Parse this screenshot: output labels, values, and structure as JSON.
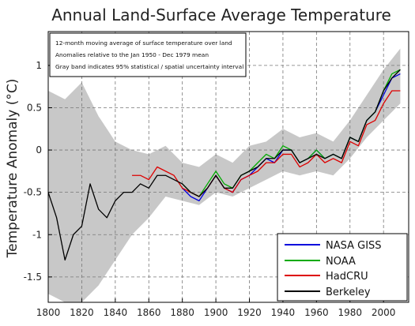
{
  "chart_data": {
    "type": "line",
    "title": "Annual Land-Surface Average Temperature",
    "xlabel": "",
    "ylabel": "Temperature Anomaly (°C)",
    "xlim": [
      1800,
      2015
    ],
    "ylim": [
      -1.8,
      1.4
    ],
    "xticks": [
      1800,
      1820,
      1840,
      1860,
      1880,
      1900,
      1920,
      1940,
      1960,
      1980,
      2000
    ],
    "yticks": [
      -1.5,
      -1,
      -0.5,
      0,
      0.5,
      1
    ],
    "ytick_labels": [
      "-1.5",
      "-1",
      "-0.5",
      "0",
      "0.5",
      "1"
    ],
    "grid": true,
    "legend_position": "bottom-right",
    "annotations": [
      "12-month moving average of surface temperature over land",
      "Anomalies relative to the Jan 1950 - Dec 1979 mean",
      "Gray band indicates 95% statistical / spatial uncertainty interval"
    ],
    "uncertainty_band": {
      "label": "95% uncertainty interval",
      "color": "#c8c8c8",
      "x": [
        1800,
        1810,
        1820,
        1830,
        1840,
        1850,
        1860,
        1870,
        1880,
        1890,
        1900,
        1910,
        1920,
        1930,
        1940,
        1950,
        1960,
        1970,
        1980,
        1990,
        2000,
        2010
      ],
      "lower": [
        -1.7,
        -1.8,
        -1.8,
        -1.6,
        -1.3,
        -1.0,
        -0.8,
        -0.55,
        -0.6,
        -0.65,
        -0.5,
        -0.55,
        -0.45,
        -0.35,
        -0.25,
        -0.3,
        -0.25,
        -0.3,
        -0.1,
        0.15,
        0.35,
        0.55
      ],
      "upper": [
        0.7,
        0.6,
        0.8,
        0.4,
        0.1,
        0.0,
        -0.05,
        0.05,
        -0.15,
        -0.2,
        -0.05,
        -0.15,
        0.05,
        0.1,
        0.25,
        0.15,
        0.2,
        0.1,
        0.35,
        0.65,
        0.95,
        1.2
      ]
    },
    "series": [
      {
        "name": "NASA GISS",
        "color": "#0000dd",
        "x": [
          1880,
          1885,
          1890,
          1895,
          1900,
          1905,
          1910,
          1915,
          1920,
          1925,
          1930,
          1935,
          1940,
          1945,
          1950,
          1955,
          1960,
          1965,
          1970,
          1975,
          1980,
          1985,
          1990,
          1995,
          2000,
          2005,
          2010
        ],
        "y": [
          -0.45,
          -0.55,
          -0.6,
          -0.45,
          -0.3,
          -0.45,
          -0.5,
          -0.35,
          -0.3,
          -0.2,
          -0.1,
          -0.15,
          0.0,
          0.0,
          -0.15,
          -0.1,
          0.0,
          -0.1,
          -0.05,
          -0.1,
          0.15,
          0.1,
          0.35,
          0.45,
          0.65,
          0.85,
          0.9
        ]
      },
      {
        "name": "NOAA",
        "color": "#00aa00",
        "x": [
          1880,
          1885,
          1890,
          1895,
          1900,
          1905,
          1910,
          1915,
          1920,
          1925,
          1930,
          1935,
          1940,
          1945,
          1950,
          1955,
          1960,
          1965,
          1970,
          1975,
          1980,
          1985,
          1990,
          1995,
          2000,
          2005,
          2010
        ],
        "y": [
          -0.4,
          -0.5,
          -0.55,
          -0.4,
          -0.25,
          -0.4,
          -0.45,
          -0.3,
          -0.25,
          -0.15,
          -0.05,
          -0.1,
          0.05,
          0.0,
          -0.15,
          -0.1,
          0.0,
          -0.1,
          -0.05,
          -0.1,
          0.15,
          0.1,
          0.35,
          0.45,
          0.7,
          0.9,
          0.95
        ]
      },
      {
        "name": "HadCRU",
        "color": "#dd0000",
        "x": [
          1850,
          1855,
          1860,
          1865,
          1870,
          1875,
          1880,
          1885,
          1890,
          1895,
          1900,
          1905,
          1910,
          1915,
          1920,
          1925,
          1930,
          1935,
          1940,
          1945,
          1950,
          1955,
          1960,
          1965,
          1970,
          1975,
          1980,
          1985,
          1990,
          1995,
          2000,
          2005,
          2010
        ],
        "y": [
          -0.3,
          -0.3,
          -0.35,
          -0.2,
          -0.25,
          -0.3,
          -0.45,
          -0.5,
          -0.55,
          -0.45,
          -0.3,
          -0.45,
          -0.5,
          -0.35,
          -0.3,
          -0.25,
          -0.15,
          -0.15,
          -0.05,
          -0.05,
          -0.2,
          -0.15,
          -0.05,
          -0.15,
          -0.1,
          -0.15,
          0.1,
          0.05,
          0.3,
          0.35,
          0.55,
          0.7,
          0.7
        ]
      },
      {
        "name": "Berkeley",
        "color": "#000000",
        "x": [
          1800,
          1805,
          1810,
          1815,
          1820,
          1825,
          1830,
          1835,
          1840,
          1845,
          1850,
          1855,
          1860,
          1865,
          1870,
          1875,
          1880,
          1885,
          1890,
          1895,
          1900,
          1905,
          1910,
          1915,
          1920,
          1925,
          1930,
          1935,
          1940,
          1945,
          1950,
          1955,
          1960,
          1965,
          1970,
          1975,
          1980,
          1985,
          1990,
          1995,
          2000,
          2005,
          2010
        ],
        "y": [
          -0.5,
          -0.8,
          -1.3,
          -1.0,
          -0.9,
          -0.4,
          -0.7,
          -0.8,
          -0.6,
          -0.5,
          -0.5,
          -0.4,
          -0.45,
          -0.3,
          -0.3,
          -0.35,
          -0.4,
          -0.5,
          -0.55,
          -0.45,
          -0.3,
          -0.45,
          -0.45,
          -0.3,
          -0.25,
          -0.2,
          -0.1,
          -0.1,
          0.0,
          0.0,
          -0.15,
          -0.1,
          -0.05,
          -0.1,
          -0.05,
          -0.1,
          0.15,
          0.1,
          0.35,
          0.45,
          0.7,
          0.85,
          0.95
        ]
      }
    ]
  }
}
